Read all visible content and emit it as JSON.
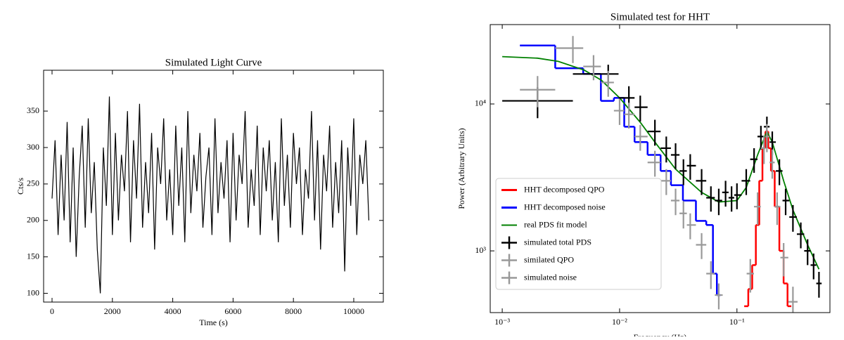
{
  "chart_data": [
    {
      "type": "line",
      "title": "Simulated Light Curve",
      "xlabel": "Time (s)",
      "ylabel": "Cts/s",
      "color": "#000000",
      "xscale": "linear",
      "yscale": "linear",
      "xlim": [
        -280,
        10980
      ],
      "ylim": [
        88,
        406
      ],
      "xticks": [
        0,
        2000,
        4000,
        6000,
        8000,
        10000
      ],
      "yticks": [
        100,
        150,
        200,
        250,
        300,
        350
      ],
      "x": [
        0,
        100,
        200,
        300,
        400,
        500,
        600,
        700,
        800,
        900,
        1000,
        1100,
        1200,
        1300,
        1400,
        1500,
        1600,
        1700,
        1800,
        1900,
        2000,
        2100,
        2200,
        2300,
        2400,
        2500,
        2600,
        2700,
        2800,
        2900,
        3000,
        3100,
        3200,
        3300,
        3400,
        3500,
        3600,
        3700,
        3800,
        3900,
        4000,
        4100,
        4200,
        4300,
        4400,
        4500,
        4600,
        4700,
        4800,
        4900,
        5000,
        5100,
        5200,
        5300,
        5400,
        5500,
        5600,
        5700,
        5800,
        5900,
        6000,
        6100,
        6200,
        6300,
        6400,
        6500,
        6600,
        6700,
        6800,
        6900,
        7000,
        7100,
        7200,
        7300,
        7400,
        7500,
        7600,
        7700,
        7800,
        7900,
        8000,
        8100,
        8200,
        8300,
        8400,
        8500,
        8600,
        8700,
        8800,
        8900,
        9000,
        9100,
        9200,
        9300,
        9400,
        9500,
        9600,
        9700,
        9800,
        9900,
        10000,
        10100,
        10200,
        10300,
        10400,
        10500
      ],
      "values": [
        230,
        310,
        180,
        290,
        200,
        335,
        170,
        300,
        150,
        260,
        330,
        190,
        340,
        210,
        280,
        160,
        100,
        300,
        220,
        370,
        180,
        320,
        200,
        290,
        240,
        350,
        170,
        310,
        230,
        360,
        190,
        280,
        210,
        320,
        160,
        300,
        250,
        340,
        200,
        270,
        180,
        330,
        220,
        300,
        170,
        350,
        210,
        290,
        240,
        320,
        190,
        260,
        300,
        180,
        340,
        210,
        280,
        230,
        310,
        170,
        320,
        200,
        290,
        250,
        350,
        190,
        270,
        220,
        330,
        180,
        300,
        240,
        310,
        200,
        280,
        170,
        340,
        220,
        290,
        190,
        320,
        250,
        300,
        180,
        270,
        230,
        350,
        200,
        310,
        160,
        290,
        240,
        330,
        190,
        280,
        210,
        310,
        130,
        300,
        220,
        340,
        180,
        290,
        250,
        310,
        200
      ]
    },
    {
      "type": "line",
      "title": "Simulated test for HHT",
      "xlabel": "Frequency (Hz)",
      "ylabel": "Power (Arbitrary Units)",
      "xscale": "log",
      "yscale": "log",
      "legend": "lower left",
      "xlim": [
        0.00079,
        0.62
      ],
      "ylim": [
        380,
        34700
      ],
      "xticks": [
        {
          "value": 0.001,
          "label": "10⁻³"
        },
        {
          "value": 0.01,
          "label": "10⁻²"
        },
        {
          "value": 0.1,
          "label": "10⁻¹"
        }
      ],
      "yticks": [
        {
          "value": 1000,
          "label": "10³"
        },
        {
          "value": 10000,
          "label": "10⁴"
        }
      ],
      "series": [
        {
          "name": "HHT decomposed QPO",
          "color": "#ff0000",
          "kind": "step",
          "x": [
            0.12,
            0.13,
            0.14,
            0.15,
            0.16,
            0.17,
            0.18,
            0.19,
            0.2,
            0.22,
            0.24,
            0.26,
            0.28
          ],
          "values": [
            420,
            550,
            800,
            1500,
            3000,
            5000,
            6500,
            5000,
            3500,
            2000,
            1000,
            600,
            420
          ]
        },
        {
          "name": "HHT decomposed noise",
          "color": "#0000ff",
          "kind": "step",
          "x": [
            0.002,
            0.004,
            0.006,
            0.008,
            0.01,
            0.012,
            0.015,
            0.02,
            0.025,
            0.03,
            0.04,
            0.05,
            0.06,
            0.065,
            0.07
          ],
          "values": [
            25000,
            17500,
            16000,
            10500,
            11000,
            7000,
            5500,
            4500,
            3500,
            2800,
            2200,
            1600,
            1500,
            700,
            500
          ]
        },
        {
          "name": "real PDS fit model",
          "color": "#008000",
          "kind": "line",
          "x": [
            0.001,
            0.002,
            0.003,
            0.005,
            0.007,
            0.01,
            0.015,
            0.02,
            0.03,
            0.05,
            0.07,
            0.1,
            0.12,
            0.15,
            0.18,
            0.2,
            0.25,
            0.3,
            0.4,
            0.5
          ],
          "values": [
            21000,
            20500,
            19500,
            17000,
            14500,
            11000,
            7500,
            5500,
            3600,
            2500,
            2150,
            2200,
            2700,
            4500,
            6500,
            5500,
            3000,
            1900,
            1100,
            750
          ]
        },
        {
          "name": "simulated total PDS",
          "color": "#000000",
          "kind": "errorbar",
          "x": [
            0.002,
            0.008,
            0.012,
            0.015,
            0.02,
            0.025,
            0.03,
            0.035,
            0.04,
            0.05,
            0.06,
            0.07,
            0.08,
            0.09,
            0.1,
            0.12,
            0.14,
            0.16,
            0.18,
            0.2,
            0.23,
            0.26,
            0.3,
            0.35,
            0.4,
            0.45,
            0.5
          ],
          "values": [
            10500,
            16000,
            11000,
            9500,
            6500,
            5000,
            4500,
            3500,
            3800,
            3000,
            2300,
            2200,
            2500,
            2300,
            2400,
            3000,
            4200,
            6000,
            7000,
            5500,
            3500,
            2200,
            1700,
            1300,
            1000,
            800,
            600
          ],
          "errors": [
            2500,
            2500,
            2200,
            1900,
            1300,
            1000,
            900,
            700,
            750,
            600,
            450,
            450,
            500,
            450,
            480,
            600,
            800,
            1100,
            1200,
            1000,
            700,
            450,
            350,
            260,
            200,
            160,
            120
          ]
        },
        {
          "name": "similated QPO",
          "color": "#999999",
          "kind": "errorbar",
          "x": [
            0.13,
            0.15,
            0.17,
            0.18,
            0.2,
            0.22,
            0.25,
            0.3
          ],
          "values": [
            700,
            2000,
            5000,
            6000,
            4000,
            2000,
            900,
            450
          ],
          "errors": [
            180,
            500,
            1100,
            1300,
            900,
            500,
            230,
            120
          ]
        },
        {
          "name": "simulated noise",
          "color": "#999999",
          "kind": "errorbar",
          "x": [
            0.002,
            0.004,
            0.006,
            0.008,
            0.01,
            0.012,
            0.015,
            0.02,
            0.025,
            0.03,
            0.035,
            0.04,
            0.05,
            0.06,
            0.07
          ],
          "values": [
            12500,
            24000,
            18000,
            14000,
            9000,
            8500,
            6000,
            4000,
            3000,
            2200,
            1800,
            1500,
            1100,
            700,
            500
          ],
          "errors": [
            3000,
            5000,
            3500,
            2800,
            1800,
            1700,
            1200,
            800,
            600,
            450,
            380,
            300,
            220,
            150,
            100
          ]
        }
      ]
    }
  ]
}
